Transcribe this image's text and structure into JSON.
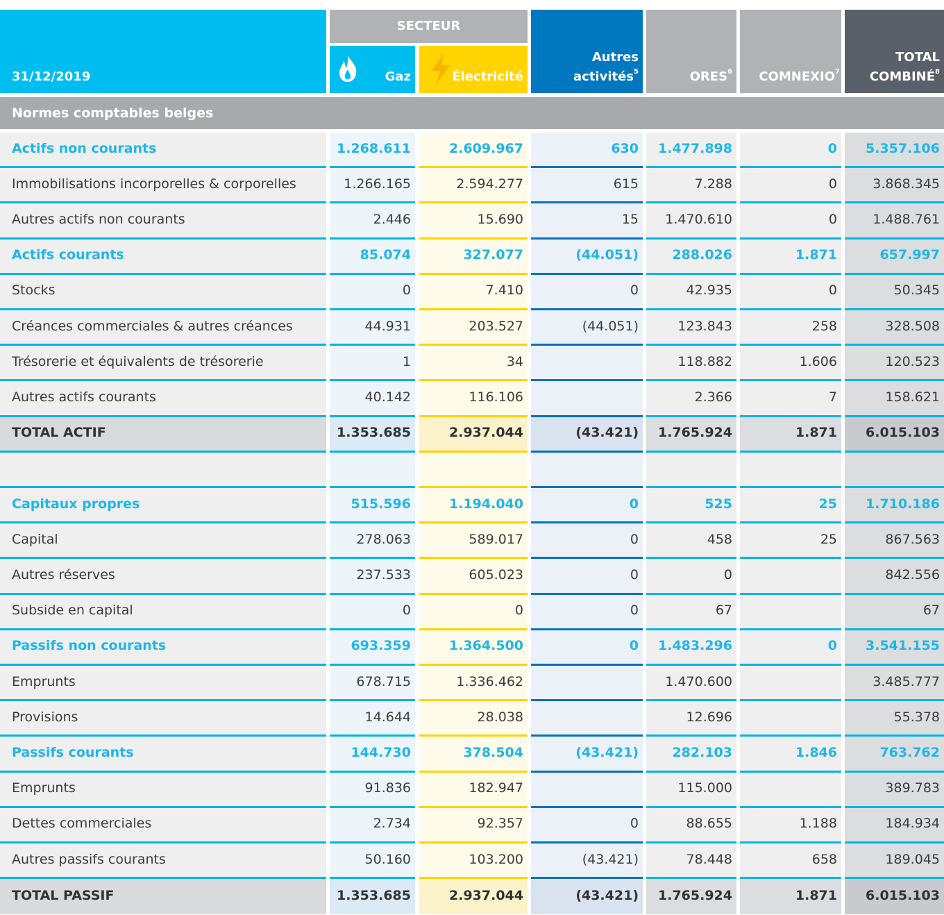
{
  "header": {
    "date": "31/12/2019",
    "group": "SECTEUR",
    "columns": [
      {
        "label": "Gaz"
      },
      {
        "label": "Électricité"
      },
      {
        "label": "Autres activités",
        "note": "5"
      },
      {
        "label": "ORES",
        "note": "6"
      },
      {
        "label": "COMNEXIO",
        "note": "7"
      },
      {
        "label": "TOTAL COMBINÉ",
        "note": "8"
      }
    ]
  },
  "section": "Normes comptables belges",
  "table": {
    "rows": [
      {
        "label": "Actifs non courants",
        "type": "section",
        "values": [
          "1.268.611",
          "2.609.967",
          "630",
          "1.477.898",
          "0",
          "5.357.106"
        ]
      },
      {
        "label": "Immobilisations incorporelles & corporelles",
        "values": [
          "1.266.165",
          "2.594.277",
          "615",
          "7.288",
          "0",
          "3.868.345"
        ]
      },
      {
        "label": "Autres actifs non courants",
        "values": [
          "2.446",
          "15.690",
          "15",
          "1.470.610",
          "0",
          "1.488.761"
        ]
      },
      {
        "label": "Actifs courants",
        "type": "section",
        "values": [
          "85.074",
          "327.077",
          "(44.051)",
          "288.026",
          "1.871",
          "657.997"
        ]
      },
      {
        "label": "Stocks",
        "values": [
          "0",
          "7.410",
          "0",
          "42.935",
          "0",
          "50.345"
        ]
      },
      {
        "label": "Créances commerciales & autres créances",
        "values": [
          "44.931",
          "203.527",
          "(44.051)",
          "123.843",
          "258",
          "328.508"
        ]
      },
      {
        "label": "Trésorerie et équivalents de trésorerie",
        "values": [
          "1",
          "34",
          null,
          "118.882",
          "1.606",
          "120.523"
        ]
      },
      {
        "label": "Autres actifs courants",
        "values": [
          "40.142",
          "116.106",
          null,
          "2.366",
          "7",
          "158.621"
        ]
      },
      {
        "label": "TOTAL ACTIF",
        "type": "total",
        "values": [
          "1.353.685",
          "2.937.044",
          "(43.421)",
          "1.765.924",
          "1.871",
          "6.015.103"
        ]
      },
      {
        "label": null,
        "values": [
          null,
          null,
          null,
          null,
          null,
          null
        ]
      },
      {
        "label": "Capitaux propres",
        "type": "section",
        "values": [
          "515.596",
          "1.194.040",
          "0",
          "525",
          "25",
          "1.710.186"
        ]
      },
      {
        "label": "Capital",
        "values": [
          "278.063",
          "589.017",
          "0",
          "458",
          "25",
          "867.563"
        ]
      },
      {
        "label": "Autres réserves",
        "values": [
          "237.533",
          "605.023",
          "0",
          "0",
          null,
          "842.556"
        ]
      },
      {
        "label": "Subside en capital",
        "values": [
          "0",
          "0",
          "0",
          "67",
          null,
          "67"
        ]
      },
      {
        "label": "Passifs non courants",
        "type": "section",
        "values": [
          "693.359",
          "1.364.500",
          "0",
          "1.483.296",
          "0",
          "3.541.155"
        ]
      },
      {
        "label": "Emprunts",
        "values": [
          "678.715",
          "1.336.462",
          null,
          "1.470.600",
          null,
          "3.485.777"
        ]
      },
      {
        "label": "Provisions",
        "values": [
          "14.644",
          "28.038",
          null,
          "12.696",
          null,
          "55.378"
        ]
      },
      {
        "label": "Passifs courants",
        "type": "section",
        "values": [
          "144.730",
          "378.504",
          "(43.421)",
          "282.103",
          "1.846",
          "763.762"
        ]
      },
      {
        "label": "Emprunts",
        "values": [
          "91.836",
          "182.947",
          null,
          "115.000",
          null,
          "389.783"
        ]
      },
      {
        "label": "Dettes commerciales",
        "values": [
          "2.734",
          "92.357",
          "0",
          "88.655",
          "1.188",
          "184.934"
        ]
      },
      {
        "label": "Autres passifs courants",
        "values": [
          "50.160",
          "103.200",
          "(43.421)",
          "78.448",
          "658",
          "189.045"
        ]
      },
      {
        "label": "TOTAL PASSIF",
        "type": "total",
        "values": [
          "1.353.685",
          "2.937.044",
          "(43.421)",
          "1.765.924",
          "1.871",
          "6.015.103"
        ]
      }
    ]
  }
}
